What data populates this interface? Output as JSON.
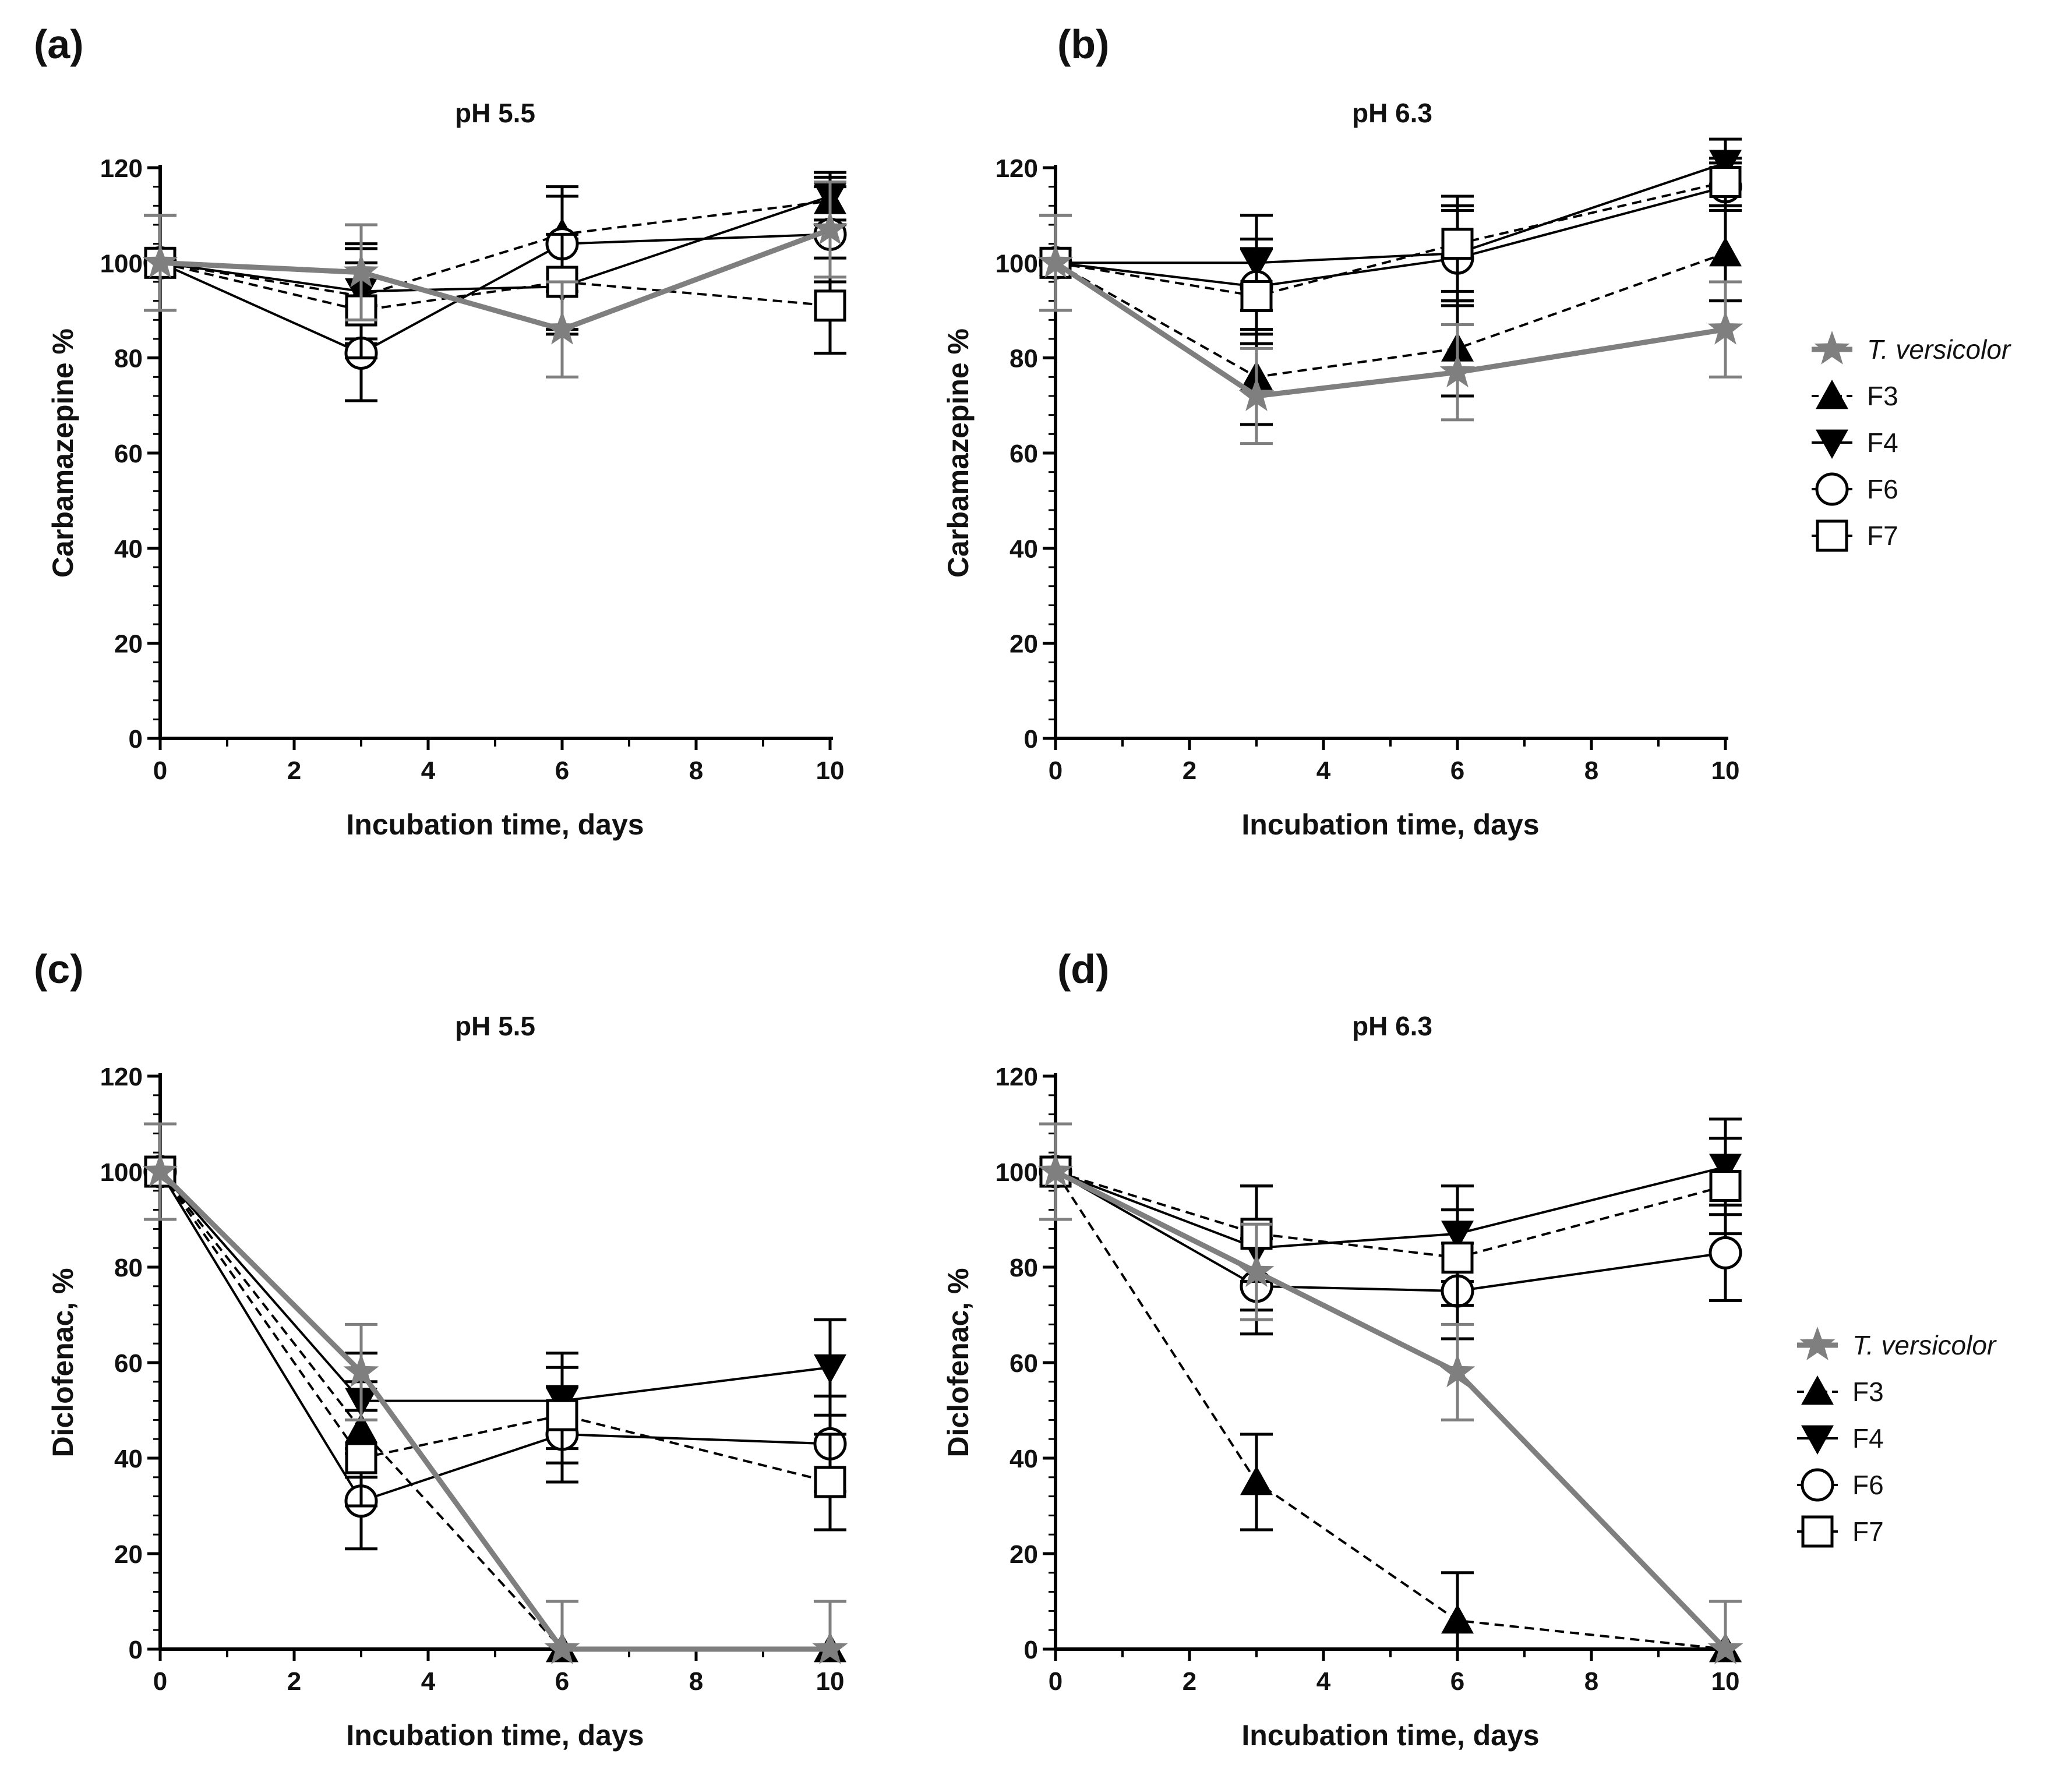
{
  "figure": {
    "colors": {
      "black": "#000000",
      "gray": "#7f7f7f"
    },
    "legend_entries": [
      {
        "name": "T. versicolor",
        "marker": "star",
        "color": "#7f7f7f",
        "line": "solid",
        "italic": true
      },
      {
        "name": "F3",
        "marker": "triangle-up",
        "color": "#000000",
        "line": "dashed",
        "italic": false
      },
      {
        "name": "F4",
        "marker": "triangle-down",
        "color": "#000000",
        "line": "solid",
        "italic": false
      },
      {
        "name": "F6",
        "marker": "circle-open",
        "color": "#000000",
        "line": "solid",
        "italic": false
      },
      {
        "name": "F7",
        "marker": "square-open",
        "color": "#000000",
        "line": "dashed",
        "italic": false
      }
    ]
  },
  "chart_data": [
    {
      "type": "line",
      "panel": "(a)",
      "title": "pH 5.5",
      "xlabel": "Incubation time, days",
      "ylabel": "Carbamazepine %",
      "xlim": [
        0,
        10
      ],
      "ylim": [
        0,
        120
      ],
      "x_ticks": [
        "0",
        "2",
        "4",
        "6",
        "8",
        "10"
      ],
      "y_ticks": [
        "0",
        "20",
        "40",
        "60",
        "80",
        "100",
        "120"
      ],
      "x": [
        0,
        3,
        6,
        10
      ],
      "series": [
        {
          "name": "F3",
          "values": [
            100,
            93,
            106,
            113
          ],
          "error": [
            10,
            10,
            10,
            5
          ]
        },
        {
          "name": "F4",
          "values": [
            100,
            94,
            95,
            114
          ],
          "error": [
            10,
            10,
            10,
            5
          ]
        },
        {
          "name": "F6",
          "values": [
            100,
            81,
            104,
            106
          ],
          "error": [
            10,
            10,
            10,
            10
          ]
        },
        {
          "name": "F7",
          "values": [
            100,
            90,
            96,
            91
          ],
          "error": [
            10,
            10,
            10,
            10
          ]
        },
        {
          "name": "T. versicolor",
          "values": [
            100,
            98,
            86,
            107
          ],
          "error": [
            10,
            10,
            10,
            10
          ]
        }
      ],
      "legend": "none"
    },
    {
      "type": "line",
      "panel": "(b)",
      "title": "pH 6.3",
      "xlabel": "Incubation time, days",
      "ylabel": "Carbamazepine %",
      "xlim": [
        0,
        10
      ],
      "ylim": [
        0,
        120
      ],
      "x_ticks": [
        "0",
        "2",
        "4",
        "6",
        "8",
        "10"
      ],
      "y_ticks": [
        "0",
        "20",
        "40",
        "60",
        "80",
        "100",
        "120"
      ],
      "x": [
        0,
        3,
        6,
        10
      ],
      "series": [
        {
          "name": "F3",
          "values": [
            100,
            76,
            82,
            102
          ],
          "error": [
            10,
            10,
            10,
            10
          ]
        },
        {
          "name": "F4",
          "values": [
            100,
            100,
            102,
            121
          ],
          "error": [
            10,
            10,
            10,
            5
          ]
        },
        {
          "name": "F6",
          "values": [
            100,
            95,
            101,
            116
          ],
          "error": [
            10,
            10,
            10,
            5
          ]
        },
        {
          "name": "F7",
          "values": [
            100,
            93,
            104,
            117
          ],
          "error": [
            10,
            10,
            10,
            5
          ]
        },
        {
          "name": "T. versicolor",
          "values": [
            100,
            72,
            77,
            86
          ],
          "error": [
            10,
            10,
            10,
            10
          ]
        }
      ],
      "legend": "right"
    },
    {
      "type": "line",
      "panel": "(c)",
      "title": "pH 5.5",
      "xlabel": "Incubation time, days",
      "ylabel": "Diclofenac, %",
      "xlim": [
        0,
        10
      ],
      "ylim": [
        0,
        120
      ],
      "x_ticks": [
        "0",
        "2",
        "4",
        "6",
        "8",
        "10"
      ],
      "y_ticks": [
        "0",
        "20",
        "40",
        "60",
        "80",
        "100",
        "120"
      ],
      "x": [
        0,
        3,
        6,
        10
      ],
      "series": [
        {
          "name": "F3",
          "values": [
            100,
            46,
            0,
            0
          ],
          "error": [
            10,
            10,
            10,
            10
          ]
        },
        {
          "name": "F4",
          "values": [
            100,
            52,
            52,
            59
          ],
          "error": [
            10,
            10,
            10,
            10
          ]
        },
        {
          "name": "F6",
          "values": [
            100,
            31,
            45,
            43
          ],
          "error": [
            10,
            10,
            10,
            10
          ]
        },
        {
          "name": "F7",
          "values": [
            100,
            40,
            49,
            35
          ],
          "error": [
            10,
            10,
            10,
            10
          ]
        },
        {
          "name": "T. versicolor",
          "values": [
            100,
            58,
            0,
            0
          ],
          "error": [
            10,
            10,
            10,
            10
          ]
        }
      ],
      "legend": "none"
    },
    {
      "type": "line",
      "panel": "(d)",
      "title": "pH 6.3",
      "xlabel": "Incubation time, days",
      "ylabel": "Diclofenac, %",
      "xlim": [
        0,
        10
      ],
      "ylim": [
        0,
        120
      ],
      "x_ticks": [
        "0",
        "2",
        "4",
        "6",
        "8",
        "10"
      ],
      "y_ticks": [
        "0",
        "20",
        "40",
        "60",
        "80",
        "100",
        "120"
      ],
      "x": [
        0,
        3,
        6,
        10
      ],
      "series": [
        {
          "name": "F3",
          "values": [
            100,
            35,
            6,
            0
          ],
          "error": [
            10,
            10,
            10,
            0
          ]
        },
        {
          "name": "F4",
          "values": [
            100,
            84,
            87,
            101
          ],
          "error": [
            10,
            13,
            10,
            10
          ]
        },
        {
          "name": "F6",
          "values": [
            100,
            76,
            75,
            83
          ],
          "error": [
            10,
            10,
            10,
            10
          ]
        },
        {
          "name": "F7",
          "values": [
            100,
            87,
            82,
            97
          ],
          "error": [
            10,
            10,
            10,
            10
          ]
        },
        {
          "name": "T. versicolor",
          "values": [
            100,
            79,
            58,
            0
          ],
          "error": [
            10,
            10,
            10,
            10
          ]
        }
      ],
      "legend": "right"
    }
  ]
}
